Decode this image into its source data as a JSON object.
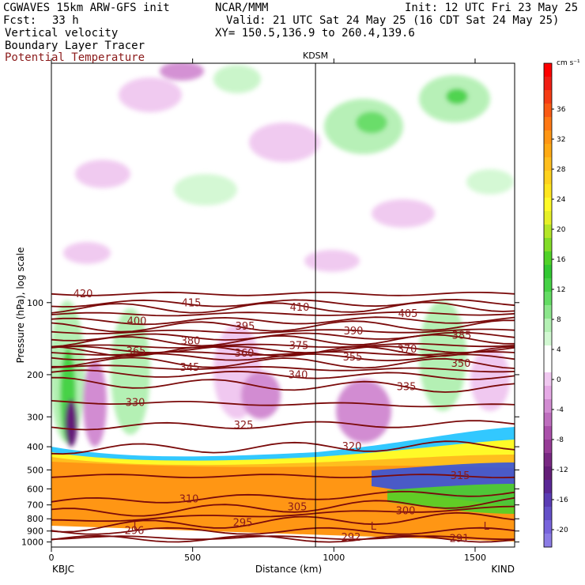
{
  "header": {
    "model": "CGWAVES 15km ARW-GFS init",
    "org": "NCAR/MMM",
    "init": "Init: 12 UTC Fri 23 May 25",
    "fcst_label": "Fcst:",
    "fcst_value": "33 h",
    "valid": "Valid: 21 UTC Sat 24 May 25 (16 CDT Sat 24 May 25)",
    "field1": "Vertical velocity",
    "xy": "XY= 150.5,136.9 to 260.4,139.6",
    "field2": "Boundary Layer Tracer",
    "field3": "Potential Temperature",
    "field3_color": "#8b1a1a"
  },
  "chart_data": {
    "type": "heatmap",
    "xlabel": "Distance (km)",
    "ylabel": "Pressure (hPa), log scale",
    "xlim": [
      0,
      1640
    ],
    "ylim": [
      1050,
      10
    ],
    "y_scale": "log",
    "x_ticks": [
      "0",
      "500",
      "1000",
      "1500"
    ],
    "x_tick_values": [
      0,
      500,
      1000,
      1500
    ],
    "y_ticks": [
      "100",
      "200",
      "300",
      "400",
      "500",
      "600",
      "700",
      "800",
      "900",
      "1000"
    ],
    "y_tick_values": [
      100,
      200,
      300,
      400,
      500,
      600,
      700,
      800,
      900,
      1000
    ],
    "left_station": "KBJC",
    "right_station": "KIND",
    "marker_station": "KDSM",
    "marker_x": 935,
    "colorbar": {
      "unit": "cm s⁻¹",
      "labels": [
        "36",
        "32",
        "28",
        "24",
        "20",
        "16",
        "12",
        "8",
        "4",
        "0",
        "-4",
        "-8",
        "-12",
        "-16",
        "-20"
      ],
      "colors": [
        "#ff0000",
        "#f01e14",
        "#f53c14",
        "#fa5a14",
        "#ff7814",
        "#ff9614",
        "#ffaa14",
        "#ffbe1e",
        "#ffd21e",
        "#ffe61e",
        "#fffa28",
        "#e6f028",
        "#b4e628",
        "#82dc28",
        "#50d228",
        "#32c832",
        "#46d246",
        "#64dc64",
        "#8ce68c",
        "#b4f0b4",
        "#d2f8d2",
        "#ffffff",
        "#ffffff",
        "#f0c8f0",
        "#e6aae6",
        "#d28cd2",
        "#be6ebe",
        "#aa50aa",
        "#963c96",
        "#782882",
        "#641e78",
        "#5a2896",
        "#5a3cb4",
        "#6450c8",
        "#7864dc",
        "#8c7ce6"
      ]
    },
    "theta_contours": [
      {
        "label": "420",
        "levels": [
          [
            0,
            92
          ],
          [
            1640,
            92
          ]
        ]
      },
      {
        "label": "415",
        "levels": [
          [
            0,
            101
          ],
          [
            1640,
            100
          ]
        ]
      },
      {
        "label": "410",
        "levels": [
          [
            0,
            106
          ],
          [
            1640,
            104
          ]
        ]
      },
      {
        "label": "405",
        "levels": [
          [
            0,
            112
          ],
          [
            1640,
            111
          ]
        ]
      },
      {
        "label": "400",
        "levels": [
          [
            0,
            120
          ],
          [
            1640,
            118
          ]
        ]
      },
      {
        "label": "395",
        "levels": [
          [
            0,
            127
          ],
          [
            1640,
            124
          ]
        ]
      },
      {
        "label": "390",
        "levels": [
          [
            0,
            133
          ],
          [
            1640,
            131
          ]
        ]
      },
      {
        "label": "385",
        "levels": [
          [
            0,
            140
          ],
          [
            1640,
            137
          ]
        ]
      },
      {
        "label": "380",
        "levels": [
          [
            0,
            146
          ],
          [
            1640,
            142
          ]
        ]
      },
      {
        "label": "375",
        "levels": [
          [
            0,
            153
          ],
          [
            1640,
            150
          ]
        ]
      },
      {
        "label": "370",
        "levels": [
          [
            0,
            157
          ],
          [
            1640,
            157
          ]
        ]
      },
      {
        "label": "365",
        "levels": [
          [
            0,
            160
          ],
          [
            1640,
            160
          ]
        ]
      },
      {
        "label": "360",
        "levels": [
          [
            0,
            163
          ],
          [
            1640,
            163
          ]
        ]
      },
      {
        "label": "355",
        "levels": [
          [
            0,
            168
          ],
          [
            1640,
            170
          ]
        ]
      },
      {
        "label": "350",
        "levels": [
          [
            0,
            177
          ],
          [
            1640,
            180
          ]
        ]
      },
      {
        "label": "345",
        "levels": [
          [
            0,
            185
          ],
          [
            1640,
            192
          ]
        ]
      },
      {
        "label": "340",
        "levels": [
          [
            0,
            197
          ],
          [
            1640,
            204
          ]
        ]
      },
      {
        "label": "335",
        "levels": [
          [
            0,
            215
          ],
          [
            1640,
            228
          ]
        ]
      },
      {
        "label": "330",
        "levels": [
          [
            0,
            260
          ],
          [
            1640,
            270
          ]
        ]
      },
      {
        "label": "325",
        "levels": [
          [
            0,
            330
          ],
          [
            1640,
            320
          ]
        ]
      },
      {
        "label": "320",
        "levels": [
          [
            0,
            410
          ],
          [
            1640,
            395
          ]
        ]
      },
      {
        "label": "315",
        "levels": [
          [
            0,
            530
          ],
          [
            1640,
            530
          ]
        ]
      },
      {
        "label": "310",
        "levels": [
          [
            0,
            680
          ],
          [
            1640,
            620
          ]
        ]
      },
      {
        "label": "305",
        "levels": [
          [
            0,
            760
          ],
          [
            1640,
            680
          ]
        ]
      },
      {
        "label": "300",
        "levels": [
          [
            0,
            820
          ],
          [
            1640,
            720
          ]
        ]
      },
      {
        "label": "296",
        "levels": [
          [
            0,
            900
          ],
          [
            1640,
            900
          ]
        ]
      },
      {
        "label": "295",
        "levels": [
          [
            0,
            870
          ],
          [
            1640,
            780
          ]
        ]
      },
      {
        "label": "292",
        "levels": [
          [
            0,
            960
          ],
          [
            1640,
            960
          ]
        ]
      },
      {
        "label": "291",
        "levels": [
          [
            0,
            970
          ],
          [
            1640,
            970
          ]
        ]
      }
    ],
    "low_markers": [
      "L",
      "L",
      "L"
    ]
  }
}
